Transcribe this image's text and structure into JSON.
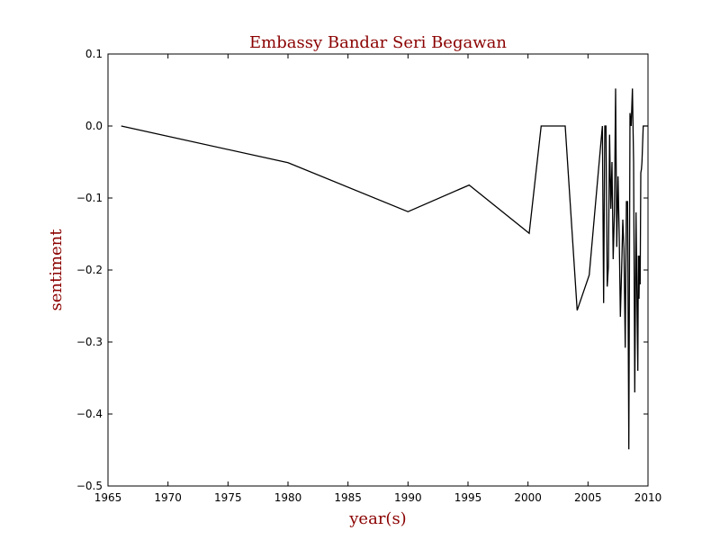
{
  "chart_data": {
    "type": "line",
    "title": "Embassy Bandar Seri Begawan",
    "xlabel": "year(s)",
    "ylabel": "sentiment",
    "xlim": [
      1965,
      2010
    ],
    "ylim": [
      -0.5,
      0.1
    ],
    "xticks": [
      1965,
      1970,
      1975,
      1980,
      1985,
      1990,
      1995,
      2000,
      2005,
      2010
    ],
    "yticks": [
      0.1,
      0.0,
      -0.1,
      -0.2,
      -0.3,
      -0.4,
      -0.5
    ],
    "xtick_labels": [
      "1965",
      "1970",
      "1975",
      "1980",
      "1985",
      "1990",
      "1995",
      "2000",
      "2005",
      "2010"
    ],
    "ytick_labels": [
      "0.1",
      "0.0",
      "−0.1",
      "−0.2",
      "−0.3",
      "−0.4",
      "−0.5"
    ],
    "grid": false,
    "line_color": "#000000",
    "label_color": "#8b0000",
    "series": [
      {
        "x": [
          1966.1,
          1980.0,
          1990.0,
          1995.1,
          2000.1,
          2001.1,
          2003.1,
          2004.1,
          2005.1,
          2006.2,
          2006.3,
          2006.4,
          2006.5,
          2006.6,
          2006.7,
          2006.8,
          2006.9,
          2007.0,
          2007.1,
          2007.2,
          2007.3,
          2007.4,
          2007.5,
          2007.6,
          2007.7,
          2007.8,
          2007.9,
          2008.0,
          2008.1,
          2008.2,
          2008.3,
          2008.4,
          2008.5,
          2008.6,
          2008.7,
          2008.8,
          2008.9,
          2009.0,
          2009.1,
          2009.15,
          2009.2,
          2009.25,
          2009.3,
          2009.35,
          2009.4,
          2009.45,
          2009.5,
          2009.6,
          2009.7,
          2009.8,
          2009.9,
          2010.0
        ],
        "y": [
          0.0,
          -0.051,
          -0.119,
          -0.082,
          -0.149,
          0.0,
          0.0,
          -0.256,
          -0.207,
          0.0,
          -0.246,
          0.0,
          0.0,
          -0.223,
          -0.195,
          -0.012,
          -0.115,
          -0.05,
          -0.185,
          -0.12,
          0.052,
          -0.168,
          -0.07,
          -0.15,
          -0.265,
          -0.2,
          -0.13,
          -0.17,
          -0.308,
          -0.105,
          -0.105,
          -0.449,
          0.018,
          0.0,
          0.052,
          -0.05,
          -0.37,
          -0.12,
          -0.27,
          -0.34,
          -0.18,
          -0.24,
          -0.18,
          -0.22,
          -0.065,
          -0.06,
          -0.05,
          0.0,
          0.0,
          0.0,
          0.0,
          0.0
        ]
      }
    ]
  }
}
